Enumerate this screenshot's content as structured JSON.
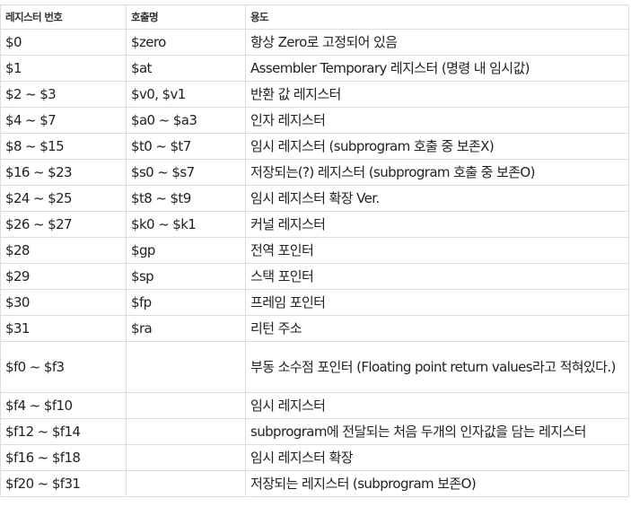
{
  "header": {
    "reg_number": "레지스터 번호",
    "call_name": "호출명",
    "usage": "용도"
  },
  "rows": [
    {
      "reg": "$0",
      "name": "$zero",
      "usage": "항상 Zero로 고정되어 있음"
    },
    {
      "reg": "$1",
      "name": "$at",
      "usage": "Assembler Temporary 레지스터 (명령 내 임시값)"
    },
    {
      "reg": "$2 ~ $3",
      "name": "$v0, $v1",
      "usage": "반환 값 레지스터"
    },
    {
      "reg": "$4 ~ $7",
      "name": "$a0 ~ $a3",
      "usage": "인자 레지스터"
    },
    {
      "reg": "$8 ~ $15",
      "name": "$t0 ~ $t7",
      "usage": "임시 레지스터 (subprogram 호출 중 보존X)"
    },
    {
      "reg": "$16 ~ $23",
      "name": "$s0 ~ $s7",
      "usage": "저장되는(?) 레지스터 (subprogram 호출 중 보존O)"
    },
    {
      "reg": "$24 ~ $25",
      "name": "$t8 ~ $t9",
      "usage": "임시 레지스터 확장 Ver."
    },
    {
      "reg": "$26 ~ $27",
      "name": "$k0 ~ $k1",
      "usage": "커널 레지스터"
    },
    {
      "reg": "$28",
      "name": "$gp",
      "usage": "전역 포인터"
    },
    {
      "reg": "$29",
      "name": "$sp",
      "usage": "스택 포인터"
    },
    {
      "reg": "$30",
      "name": "$fp",
      "usage": "프레임 포인터"
    },
    {
      "reg": "$31",
      "name": "$ra",
      "usage": "리턴 주소"
    },
    {
      "reg": "$f0 ~ $f3",
      "name": "",
      "usage": "부동 소수점 포인터 (Floating point return values라고 적혀있다.)"
    },
    {
      "reg": "$f4 ~ $f10",
      "name": "",
      "usage": "임시 레지스터"
    },
    {
      "reg": "$f12 ~ $f14",
      "name": "",
      "usage": "subprogram에 전달되는 처음 두개의 인자값을 담는 레지스터"
    },
    {
      "reg": "$f16 ~ $f18",
      "name": "",
      "usage": "임시 레지스터 확장"
    },
    {
      "reg": "$f20 ~ $f31",
      "name": "",
      "usage": "저장되는 레지스터 (subprogram 보존O)"
    }
  ]
}
